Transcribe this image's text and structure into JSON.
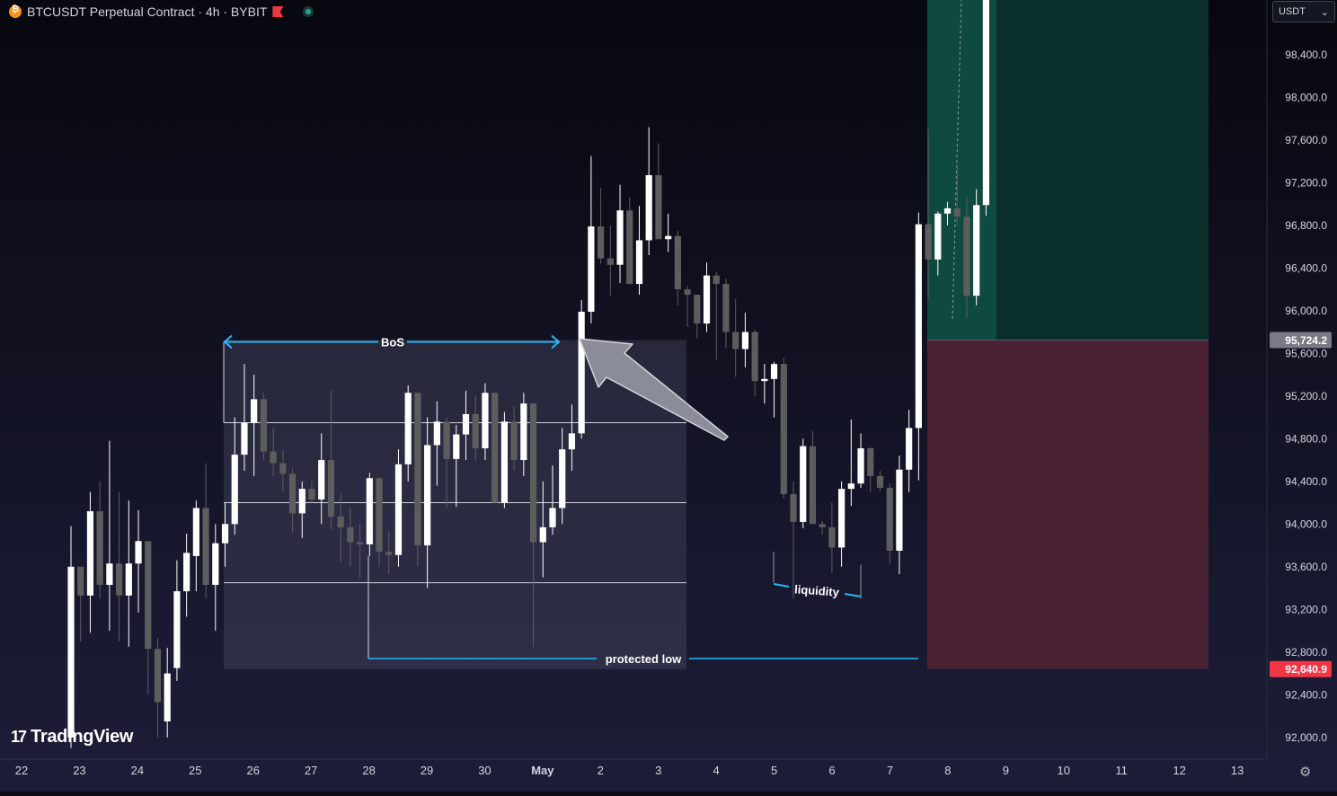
{
  "header": {
    "title": "BTCUSDT Perpetual Contract · 4h · BYBIT"
  },
  "currency_selector": {
    "value": "USDT"
  },
  "branding": {
    "logo_text": "TradingView"
  },
  "colors": {
    "bullish": "#ffffff",
    "bearish": "#5d5d5d",
    "annotation": "#29b6f6",
    "take_profit_zone": "#0e4a40",
    "stop_loss_zone": "#4a2233",
    "current_price_tag": "#787b86",
    "stop_price_tag": "#f23645"
  },
  "chart_data": {
    "type": "candlestick",
    "symbol": "BTCUSDT Perpetual Contract",
    "interval": "4h",
    "exchange": "BYBIT",
    "ylim": [
      91700,
      98900
    ],
    "y_ticks": [
      "98,400.0",
      "98,000.0",
      "97,600.0",
      "97,200.0",
      "96,800.0",
      "96,400.0",
      "96,000.0",
      "95,600.0",
      "95,200.0",
      "94,800.0",
      "94,400.0",
      "94,000.0",
      "93,600.0",
      "93,200.0",
      "92,800.0",
      "92,400.0",
      "92,000.0"
    ],
    "x_ticks": [
      "22",
      "23",
      "24",
      "25",
      "26",
      "27",
      "28",
      "29",
      "30",
      "May",
      "2",
      "3",
      "4",
      "5",
      "6",
      "7",
      "8",
      "9",
      "10",
      "11",
      "12",
      "13"
    ],
    "price_tags": [
      {
        "label": "95,724.2",
        "value": 95724.2,
        "kind": "current"
      },
      {
        "label": "92,640.9",
        "value": 92640.9,
        "kind": "stop"
      }
    ],
    "candles": [
      {
        "t": "Apr 22 20:00",
        "o": 92000,
        "h": 93980,
        "l": 91900,
        "c": 93600
      },
      {
        "t": "Apr 23 00:00",
        "o": 93600,
        "h": 93600,
        "l": 92900,
        "c": 93330
      },
      {
        "t": "Apr 23 04:00",
        "o": 93330,
        "h": 94300,
        "l": 92980,
        "c": 94120
      },
      {
        "t": "Apr 23 08:00",
        "o": 94120,
        "h": 94400,
        "l": 93300,
        "c": 93430
      },
      {
        "t": "Apr 23 12:00",
        "o": 93430,
        "h": 94780,
        "l": 93000,
        "c": 93630
      },
      {
        "t": "Apr 23 16:00",
        "o": 93630,
        "h": 94300,
        "l": 92900,
        "c": 93330
      },
      {
        "t": "Apr 23 20:00",
        "o": 93330,
        "h": 94220,
        "l": 92850,
        "c": 93630
      },
      {
        "t": "Apr 24 00:00",
        "o": 93630,
        "h": 94130,
        "l": 93170,
        "c": 93840
      },
      {
        "t": "Apr 24 04:00",
        "o": 93840,
        "h": 93840,
        "l": 92400,
        "c": 92830
      },
      {
        "t": "Apr 24 08:00",
        "o": 92830,
        "h": 92930,
        "l": 92000,
        "c": 92330
      },
      {
        "t": "Apr 24 12:00",
        "o": 92150,
        "h": 92840,
        "l": 92000,
        "c": 92600
      },
      {
        "t": "Apr 24 16:00",
        "o": 92650,
        "h": 93660,
        "l": 92530,
        "c": 93370
      },
      {
        "t": "Apr 24 20:00",
        "o": 93370,
        "h": 93910,
        "l": 93130,
        "c": 93730
      },
      {
        "t": "Apr 25 00:00",
        "o": 93700,
        "h": 94220,
        "l": 93370,
        "c": 94150
      },
      {
        "t": "Apr 25 04:00",
        "o": 94150,
        "h": 94570,
        "l": 93300,
        "c": 93430
      },
      {
        "t": "Apr 25 08:00",
        "o": 93430,
        "h": 94000,
        "l": 93000,
        "c": 93820
      },
      {
        "t": "Apr 25 12:00",
        "o": 93820,
        "h": 94200,
        "l": 93600,
        "c": 94000
      },
      {
        "t": "Apr 25 16:00",
        "o": 94000,
        "h": 95000,
        "l": 93900,
        "c": 94650
      },
      {
        "t": "Apr 25 20:00",
        "o": 94650,
        "h": 95500,
        "l": 94500,
        "c": 94950
      },
      {
        "t": "Apr 26 00:00",
        "o": 94950,
        "h": 95400,
        "l": 94450,
        "c": 95170
      },
      {
        "t": "Apr 26 04:00",
        "o": 95170,
        "h": 95230,
        "l": 94600,
        "c": 94680
      },
      {
        "t": "Apr 26 08:00",
        "o": 94680,
        "h": 94900,
        "l": 94450,
        "c": 94570
      },
      {
        "t": "Apr 26 12:00",
        "o": 94570,
        "h": 94700,
        "l": 94300,
        "c": 94470
      },
      {
        "t": "Apr 26 16:00",
        "o": 94470,
        "h": 94520,
        "l": 93920,
        "c": 94100
      },
      {
        "t": "Apr 26 20:00",
        "o": 94100,
        "h": 94400,
        "l": 93870,
        "c": 94330
      },
      {
        "t": "Apr 27 00:00",
        "o": 94330,
        "h": 94400,
        "l": 94200,
        "c": 94230
      },
      {
        "t": "Apr 27 04:00",
        "o": 94230,
        "h": 94850,
        "l": 94000,
        "c": 94600
      },
      {
        "t": "Apr 27 08:00",
        "o": 94600,
        "h": 95250,
        "l": 93950,
        "c": 94070
      },
      {
        "t": "Apr 27 12:00",
        "o": 94070,
        "h": 94290,
        "l": 93640,
        "c": 93970
      },
      {
        "t": "Apr 27 16:00",
        "o": 93970,
        "h": 94150,
        "l": 93600,
        "c": 93830
      },
      {
        "t": "Apr 27 20:00",
        "o": 93830,
        "h": 94000,
        "l": 93500,
        "c": 93810
      },
      {
        "t": "Apr 28 00:00",
        "o": 93810,
        "h": 94480,
        "l": 93700,
        "c": 94430
      },
      {
        "t": "Apr 28 04:00",
        "o": 94430,
        "h": 94430,
        "l": 93600,
        "c": 93740
      },
      {
        "t": "Apr 28 08:00",
        "o": 93740,
        "h": 93930,
        "l": 93530,
        "c": 93710
      },
      {
        "t": "Apr 28 12:00",
        "o": 93710,
        "h": 94700,
        "l": 93600,
        "c": 94560
      },
      {
        "t": "Apr 28 16:00",
        "o": 94560,
        "h": 95300,
        "l": 94400,
        "c": 95230
      },
      {
        "t": "Apr 28 20:00",
        "o": 95230,
        "h": 95230,
        "l": 93600,
        "c": 93800
      },
      {
        "t": "Apr 29 00:00",
        "o": 93800,
        "h": 95000,
        "l": 93400,
        "c": 94740
      },
      {
        "t": "Apr 29 04:00",
        "o": 94740,
        "h": 95150,
        "l": 94360,
        "c": 94960
      },
      {
        "t": "Apr 29 08:00",
        "o": 94960,
        "h": 95000,
        "l": 94150,
        "c": 94610
      },
      {
        "t": "Apr 29 12:00",
        "o": 94610,
        "h": 94930,
        "l": 94160,
        "c": 94840
      },
      {
        "t": "Apr 29 16:00",
        "o": 94840,
        "h": 95250,
        "l": 94600,
        "c": 95030
      },
      {
        "t": "Apr 29 20:00",
        "o": 95030,
        "h": 95200,
        "l": 94600,
        "c": 94710
      },
      {
        "t": "Apr 30 00:00",
        "o": 94710,
        "h": 95320,
        "l": 94600,
        "c": 95230
      },
      {
        "t": "Apr 30 04:00",
        "o": 95230,
        "h": 95230,
        "l": 94200,
        "c": 94200
      },
      {
        "t": "Apr 30 08:00",
        "o": 94200,
        "h": 95050,
        "l": 94150,
        "c": 94960
      },
      {
        "t": "Apr 30 12:00",
        "o": 94960,
        "h": 95100,
        "l": 94500,
        "c": 94600
      },
      {
        "t": "Apr 30 16:00",
        "o": 94600,
        "h": 95230,
        "l": 94450,
        "c": 95130
      },
      {
        "t": "Apr 30 20:00",
        "o": 95130,
        "h": 95130,
        "l": 92850,
        "c": 93830
      },
      {
        "t": "May 01 00:00",
        "o": 93830,
        "h": 94400,
        "l": 93500,
        "c": 93970
      },
      {
        "t": "May 01 04:00",
        "o": 93970,
        "h": 94550,
        "l": 93900,
        "c": 94150
      },
      {
        "t": "May 01 08:00",
        "o": 94150,
        "h": 94900,
        "l": 94000,
        "c": 94700
      },
      {
        "t": "May 01 12:00",
        "o": 94700,
        "h": 95120,
        "l": 94500,
        "c": 94850
      },
      {
        "t": "May 01 16:00",
        "o": 94850,
        "h": 96100,
        "l": 94800,
        "c": 95990
      },
      {
        "t": "May 01 20:00",
        "o": 95990,
        "h": 97450,
        "l": 95880,
        "c": 96790
      },
      {
        "t": "May 02 00:00",
        "o": 96790,
        "h": 97150,
        "l": 96440,
        "c": 96490
      },
      {
        "t": "May 02 04:00",
        "o": 96490,
        "h": 96800,
        "l": 96140,
        "c": 96430
      },
      {
        "t": "May 02 08:00",
        "o": 96430,
        "h": 97180,
        "l": 96260,
        "c": 96940
      },
      {
        "t": "May 02 12:00",
        "o": 96940,
        "h": 97060,
        "l": 96250,
        "c": 96250
      },
      {
        "t": "May 02 16:00",
        "o": 96250,
        "h": 96980,
        "l": 96150,
        "c": 96660
      },
      {
        "t": "May 02 20:00",
        "o": 96660,
        "h": 97720,
        "l": 96520,
        "c": 97270
      },
      {
        "t": "May 03 00:00",
        "o": 97270,
        "h": 97570,
        "l": 96710,
        "c": 96670
      },
      {
        "t": "May 03 04:00",
        "o": 96670,
        "h": 96910,
        "l": 96550,
        "c": 96700
      },
      {
        "t": "May 03 08:00",
        "o": 96700,
        "h": 96750,
        "l": 96050,
        "c": 96200
      },
      {
        "t": "May 03 12:00",
        "o": 96200,
        "h": 96230,
        "l": 95850,
        "c": 96150
      },
      {
        "t": "May 03 16:00",
        "o": 96150,
        "h": 96150,
        "l": 95740,
        "c": 95880
      },
      {
        "t": "May 03 20:00",
        "o": 95880,
        "h": 96450,
        "l": 95800,
        "c": 96330
      },
      {
        "t": "May 04 00:00",
        "o": 96330,
        "h": 96360,
        "l": 95540,
        "c": 96250
      },
      {
        "t": "May 04 04:00",
        "o": 96250,
        "h": 96300,
        "l": 95650,
        "c": 95800
      },
      {
        "t": "May 04 08:00",
        "o": 95800,
        "h": 96110,
        "l": 95380,
        "c": 95640
      },
      {
        "t": "May 04 12:00",
        "o": 95640,
        "h": 95980,
        "l": 95470,
        "c": 95800
      },
      {
        "t": "May 04 16:00",
        "o": 95800,
        "h": 95820,
        "l": 95200,
        "c": 95340
      },
      {
        "t": "May 04 20:00",
        "o": 95340,
        "h": 95500,
        "l": 95130,
        "c": 95360
      },
      {
        "t": "May 05 00:00",
        "o": 95360,
        "h": 95520,
        "l": 95000,
        "c": 95500
      },
      {
        "t": "May 05 04:00",
        "o": 95500,
        "h": 95560,
        "l": 94240,
        "c": 94280
      },
      {
        "t": "May 05 08:00",
        "o": 94280,
        "h": 94400,
        "l": 93300,
        "c": 94020
      },
      {
        "t": "May 05 12:00",
        "o": 94020,
        "h": 94800,
        "l": 93960,
        "c": 94730
      },
      {
        "t": "May 05 16:00",
        "o": 94730,
        "h": 94870,
        "l": 94000,
        "c": 94000
      },
      {
        "t": "May 05 20:00",
        "o": 94000,
        "h": 94030,
        "l": 93900,
        "c": 93970
      },
      {
        "t": "May 06 00:00",
        "o": 93970,
        "h": 94200,
        "l": 93540,
        "c": 93780
      },
      {
        "t": "May 06 04:00",
        "o": 93780,
        "h": 94400,
        "l": 93600,
        "c": 94330
      },
      {
        "t": "May 06 08:00",
        "o": 94330,
        "h": 94980,
        "l": 94170,
        "c": 94380
      },
      {
        "t": "May 06 12:00",
        "o": 94380,
        "h": 94850,
        "l": 94340,
        "c": 94710
      },
      {
        "t": "May 06 16:00",
        "o": 94710,
        "h": 94720,
        "l": 94300,
        "c": 94450
      },
      {
        "t": "May 06 20:00",
        "o": 94450,
        "h": 94500,
        "l": 94310,
        "c": 94340
      },
      {
        "t": "May 07 00:00",
        "o": 94340,
        "h": 94380,
        "l": 93620,
        "c": 93750
      },
      {
        "t": "May 07 04:00",
        "o": 93750,
        "h": 94640,
        "l": 93530,
        "c": 94510
      },
      {
        "t": "May 07 08:00",
        "o": 94510,
        "h": 95070,
        "l": 94300,
        "c": 94900
      },
      {
        "t": "May 07 12:00",
        "o": 94900,
        "h": 96920,
        "l": 94410,
        "c": 96810
      },
      {
        "t": "May 07 16:00",
        "o": 96810,
        "h": 97700,
        "l": 96120,
        "c": 96480
      },
      {
        "t": "May 07 20:00",
        "o": 96480,
        "h": 96930,
        "l": 96330,
        "c": 96910
      },
      {
        "t": "May 08 00:00",
        "o": 96910,
        "h": 97020,
        "l": 96800,
        "c": 96960
      },
      {
        "t": "May 08 04:00",
        "o": 96960,
        "h": 97370,
        "l": 96800,
        "c": 96880
      },
      {
        "t": "May 08 08:00",
        "o": 96880,
        "h": 97070,
        "l": 95930,
        "c": 96140
      },
      {
        "t": "May 08 12:00",
        "o": 96140,
        "h": 97140,
        "l": 96050,
        "c": 96990
      },
      {
        "t": "May 08 16:00",
        "o": 96990,
        "h": 99000,
        "l": 96890,
        "c": 98990
      }
    ],
    "annotations": [
      {
        "kind": "text",
        "label": "BoS"
      },
      {
        "kind": "text",
        "label": "liquidity"
      },
      {
        "kind": "text",
        "label": "protected low"
      }
    ],
    "position": {
      "entry": 95724.2,
      "stop": 92640.9,
      "target": 98900
    }
  }
}
